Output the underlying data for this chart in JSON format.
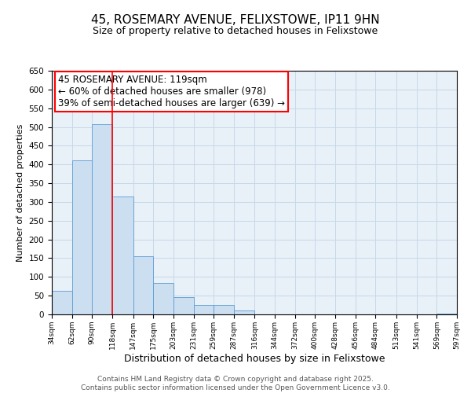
{
  "title": "45, ROSEMARY AVENUE, FELIXSTOWE, IP11 9HN",
  "subtitle": "Size of property relative to detached houses in Felixstowe",
  "xlabel": "Distribution of detached houses by size in Felixstowe",
  "ylabel": "Number of detached properties",
  "bar_edges": [
    34,
    62,
    90,
    118,
    147,
    175,
    203,
    231,
    259,
    287,
    316,
    344,
    372,
    400,
    428,
    456,
    484,
    513,
    541,
    569,
    597
  ],
  "bar_heights": [
    63,
    412,
    507,
    314,
    155,
    84,
    46,
    25,
    25,
    10,
    0,
    0,
    0,
    0,
    0,
    0,
    0,
    0,
    0,
    2
  ],
  "bar_color": "#ccdff0",
  "bar_edge_color": "#5b9bd5",
  "vline_x": 118,
  "vline_color": "#ff0000",
  "annotation_line1": "45 ROSEMARY AVENUE: 119sqm",
  "annotation_line2": "← 60% of detached houses are smaller (978)",
  "annotation_line3": "39% of semi-detached houses are larger (639) →",
  "annotation_box_color": "#ff0000",
  "annotation_fontsize": 8.5,
  "ylim": [
    0,
    650
  ],
  "yticks": [
    0,
    50,
    100,
    150,
    200,
    250,
    300,
    350,
    400,
    450,
    500,
    550,
    600,
    650
  ],
  "tick_labels": [
    "34sqm",
    "62sqm",
    "90sqm",
    "118sqm",
    "147sqm",
    "175sqm",
    "203sqm",
    "231sqm",
    "259sqm",
    "287sqm",
    "316sqm",
    "344sqm",
    "372sqm",
    "400sqm",
    "428sqm",
    "456sqm",
    "484sqm",
    "513sqm",
    "541sqm",
    "569sqm",
    "597sqm"
  ],
  "title_fontsize": 11,
  "subtitle_fontsize": 9,
  "xlabel_fontsize": 9,
  "ylabel_fontsize": 8,
  "footer_line1": "Contains HM Land Registry data © Crown copyright and database right 2025.",
  "footer_line2": "Contains public sector information licensed under the Open Government Licence v3.0.",
  "footer_fontsize": 6.5,
  "plot_bg_color": "#e8f0f8",
  "background_color": "#ffffff",
  "grid_color": "#c8d8e8"
}
